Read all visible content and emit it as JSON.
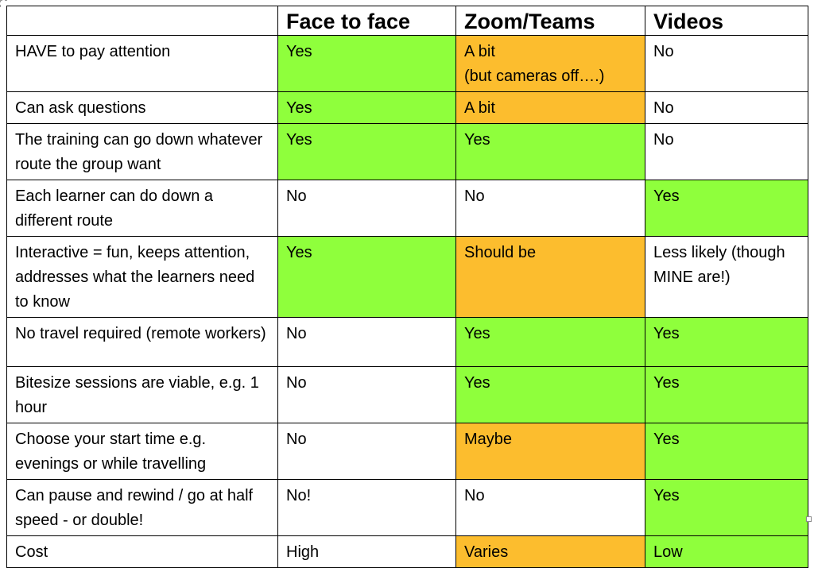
{
  "table": {
    "headers": [
      "",
      "Face to face",
      "Zoom/Teams",
      "Videos"
    ],
    "rows": [
      {
        "label": "HAVE to pay attention",
        "cells": [
          {
            "text": "Yes",
            "status": "yes"
          },
          {
            "text": "A bit\n(but cameras off….)",
            "status": "mid"
          },
          {
            "text": "No",
            "status": "no"
          }
        ]
      },
      {
        "label": "Can ask questions",
        "cells": [
          {
            "text": "Yes",
            "status": "yes"
          },
          {
            "text": "A bit",
            "status": "mid"
          },
          {
            "text": "No",
            "status": "no"
          }
        ]
      },
      {
        "label": "The training can go down whatever route the group want",
        "cells": [
          {
            "text": "Yes",
            "status": "yes"
          },
          {
            "text": "Yes",
            "status": "yes"
          },
          {
            "text": "No",
            "status": "no"
          }
        ]
      },
      {
        "label": "Each learner can do down a different route",
        "cells": [
          {
            "text": "No",
            "status": "no"
          },
          {
            "text": "No",
            "status": "no"
          },
          {
            "text": "Yes",
            "status": "yes"
          }
        ]
      },
      {
        "label": "Interactive = fun, keeps attention, addresses what the learners need to know",
        "cells": [
          {
            "text": "Yes",
            "status": "yes"
          },
          {
            "text": "Should be",
            "status": "mid"
          },
          {
            "text": "Less likely (though MINE are!)",
            "status": "no"
          }
        ]
      },
      {
        "label": "No travel required (remote workers)",
        "cells": [
          {
            "text": "No",
            "status": "no"
          },
          {
            "text": "Yes",
            "status": "yes"
          },
          {
            "text": "Yes",
            "status": "yes"
          }
        ]
      },
      {
        "label": "Bitesize sessions are viable, e.g. 1 hour",
        "cells": [
          {
            "text": "No",
            "status": "no"
          },
          {
            "text": "Yes",
            "status": "yes"
          },
          {
            "text": "Yes",
            "status": "yes"
          }
        ]
      },
      {
        "label": "Choose your start time e.g. evenings or while travelling",
        "cells": [
          {
            "text": "No",
            "status": "no"
          },
          {
            "text": "Maybe",
            "status": "mid"
          },
          {
            "text": "Yes",
            "status": "yes"
          }
        ]
      },
      {
        "label": "Can pause and rewind / go at half speed - or double!",
        "cells": [
          {
            "text": "No!",
            "status": "no"
          },
          {
            "text": "No",
            "status": "no"
          },
          {
            "text": "Yes",
            "status": "yes"
          }
        ]
      },
      {
        "label": "Cost",
        "cells": [
          {
            "text": "High",
            "status": "no"
          },
          {
            "text": "Varies",
            "status": "mid"
          },
          {
            "text": "Low",
            "status": "yes"
          }
        ]
      }
    ]
  },
  "colors": {
    "yes": "#8fff3c",
    "mid": "#fcbd2e",
    "no": "#ffffff"
  }
}
